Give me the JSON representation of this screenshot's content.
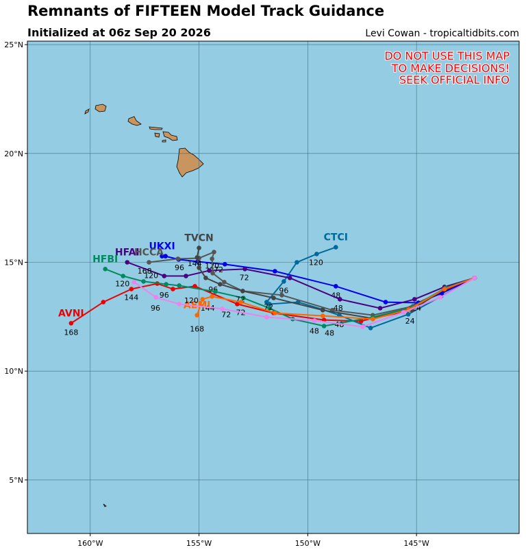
{
  "map": {
    "title": "Remnants of FIFTEEN Model Track Guidance",
    "subtitle": "Initialized at 06z Sep 20 2026",
    "credit": "Levi Cowan - tropicaltidbits.com",
    "warning": [
      "DO NOT USE THIS MAP",
      "TO MAKE DECISIONS!",
      "SEEK OFFICIAL INFO"
    ],
    "xlim": [
      -162.89,
      -140.28
    ],
    "ylim": [
      2.54,
      25.16
    ],
    "xticks": [
      {
        "value": -160,
        "label": "160°W"
      },
      {
        "value": -155,
        "label": "155°W"
      },
      {
        "value": -150,
        "label": "150°W"
      },
      {
        "value": -145,
        "label": "145°W"
      }
    ],
    "yticks": [
      {
        "value": 5,
        "label": "5°N"
      },
      {
        "value": 10,
        "label": "10°N"
      },
      {
        "value": 15,
        "label": "15°N"
      },
      {
        "value": 20,
        "label": "20°N"
      },
      {
        "value": 25,
        "label": "25°N"
      }
    ],
    "tracks": [
      {
        "name": "AVNI",
        "color": "#ee0000",
        "points": [
          [
            -142.33,
            14.28
          ],
          [
            -143.77,
            13.68
          ],
          [
            -145.66,
            12.8
          ],
          [
            -147.55,
            12.29
          ],
          [
            -149.25,
            12.35
          ],
          [
            -151.57,
            12.67
          ],
          [
            -153.24,
            13.08
          ],
          [
            -155.19,
            13.9
          ],
          [
            -156.2,
            13.77
          ],
          [
            -156.92,
            14.02
          ],
          [
            -158.11,
            13.77
          ],
          [
            -159.4,
            13.17
          ],
          [
            -160.88,
            12.2
          ]
        ],
        "hour_labels": [
          {
            "lon": -160.88,
            "lat": 11.79,
            "hour": 168
          },
          {
            "lon": -158.11,
            "lat": 13.39,
            "hour": 144
          },
          {
            "lon": -153.08,
            "lat": 12.7,
            "hour": 72
          }
        ]
      },
      {
        "name": "CTCI",
        "color": "#00699a",
        "points": [
          [
            -142.33,
            14.28
          ],
          [
            -143.87,
            13.43
          ],
          [
            -145.38,
            12.61
          ],
          [
            -147.11,
            11.98
          ],
          [
            -148.55,
            12.57
          ],
          [
            -149.31,
            12.83
          ],
          [
            -150.44,
            13.17
          ],
          [
            -151.76,
            13.08
          ],
          [
            -151.89,
            13.17
          ],
          [
            -151.1,
            14.12
          ],
          [
            -150.5,
            15.0
          ],
          [
            -149.59,
            15.38
          ],
          [
            -148.71,
            15.69
          ]
        ],
        "hour_labels": [
          {
            "lon": -149.62,
            "lat": 15.0,
            "hour": 120
          },
          {
            "lon": -148.55,
            "lat": 12.15,
            "hour": 48
          },
          {
            "lon": -145.3,
            "lat": 12.3,
            "hour": 24
          }
        ]
      },
      {
        "name": "UKXI",
        "color": "#0000ee",
        "points": [
          [
            -142.33,
            14.28
          ],
          [
            -143.84,
            13.58
          ],
          [
            -144.91,
            13.14
          ],
          [
            -146.42,
            13.17
          ],
          [
            -148.71,
            13.9
          ],
          [
            -151.51,
            14.59
          ],
          [
            -153.81,
            14.91
          ],
          [
            -155.06,
            15.03
          ],
          [
            -155.94,
            15.13
          ],
          [
            -156.54,
            15.28
          ],
          [
            -156.7,
            15.28
          ]
        ],
        "hour_labels": [
          {
            "lon": -148.71,
            "lat": 13.49,
            "hour": 48
          },
          {
            "lon": -154.4,
            "lat": 14.84,
            "hour": 120
          }
        ]
      },
      {
        "name": "HFAI",
        "color": "#4b0082",
        "points": [
          [
            -142.33,
            14.28
          ],
          [
            -143.71,
            13.87
          ],
          [
            -145.09,
            13.3
          ],
          [
            -146.67,
            12.89
          ],
          [
            -148.52,
            13.3
          ],
          [
            -150.82,
            14.28
          ],
          [
            -152.89,
            14.69
          ],
          [
            -154.53,
            14.62
          ],
          [
            -155.6,
            14.37
          ],
          [
            -156.6,
            14.37
          ],
          [
            -158.3,
            15.0
          ]
        ],
        "hour_labels": [
          {
            "lon": -152.92,
            "lat": 14.31,
            "hour": 72
          },
          {
            "lon": -151.1,
            "lat": 13.71,
            "hour": 96
          },
          {
            "lon": -158.52,
            "lat": 14.02,
            "hour": 120
          },
          {
            "lon": -145.0,
            "lat": 12.9,
            "hour": 24
          }
        ]
      },
      {
        "name": "HCCA",
        "color": "#555555",
        "points": [
          [
            -142.33,
            14.28
          ],
          [
            -143.71,
            13.77
          ],
          [
            -145.16,
            12.98
          ],
          [
            -147.01,
            12.57
          ],
          [
            -148.87,
            12.8
          ],
          [
            -151.19,
            13.49
          ],
          [
            -152.99,
            13.68
          ],
          [
            -153.84,
            14.09
          ],
          [
            -154.37,
            14.5
          ],
          [
            -154.4,
            15.16
          ],
          [
            -154.31,
            15.47
          ],
          [
            -155.0,
            15.19
          ],
          [
            -155.97,
            15.16
          ],
          [
            -157.3,
            15.0
          ]
        ],
        "hour_labels": [
          {
            "lon": -154.1,
            "lat": 14.67,
            "hour": 72
          },
          {
            "lon": -155.9,
            "lat": 14.77,
            "hour": 96
          },
          {
            "lon": -157.5,
            "lat": 14.6,
            "hour": 168
          }
        ]
      },
      {
        "name": "TVCN",
        "color": "#444444",
        "points": [
          [
            -142.33,
            14.28
          ],
          [
            -143.71,
            13.77
          ],
          [
            -145.22,
            12.8
          ],
          [
            -147.01,
            12.42
          ],
          [
            -149.31,
            12.8
          ],
          [
            -151.57,
            13.36
          ],
          [
            -152.99,
            13.68
          ],
          [
            -154.03,
            13.99
          ],
          [
            -154.69,
            14.28
          ],
          [
            -155.0,
            14.75
          ],
          [
            -155.09,
            15.22
          ],
          [
            -155.0,
            15.66
          ]
        ],
        "hour_labels": [
          {
            "lon": -148.6,
            "lat": 12.9,
            "hour": 48
          },
          {
            "lon": -154.35,
            "lat": 13.75,
            "hour": 96
          },
          {
            "lon": -155.2,
            "lat": 14.95,
            "hour": 144
          }
        ]
      },
      {
        "name": "HFBI",
        "color": "#008a60",
        "points": [
          [
            -142.33,
            14.28
          ],
          [
            -143.65,
            13.83
          ],
          [
            -145.22,
            12.92
          ],
          [
            -147.01,
            12.48
          ],
          [
            -149.25,
            12.07
          ],
          [
            -150.69,
            12.39
          ],
          [
            -151.76,
            12.89
          ],
          [
            -152.96,
            13.36
          ],
          [
            -154.25,
            13.65
          ],
          [
            -155.91,
            13.93
          ],
          [
            -156.51,
            13.99
          ],
          [
            -157.55,
            14.12
          ],
          [
            -158.49,
            14.37
          ],
          [
            -159.31,
            14.69
          ]
        ],
        "hour_labels": [
          {
            "lon": -149.0,
            "lat": 11.75,
            "hour": 48
          },
          {
            "lon": -153.1,
            "lat": 13.3,
            "hour": 72
          },
          {
            "lon": -156.6,
            "lat": 13.5,
            "hour": 96
          },
          {
            "lon": -157.2,
            "lat": 14.4,
            "hour": 120
          }
        ]
      },
      {
        "name": "AEMI",
        "color": "#ff6600",
        "points": [
          [
            -142.33,
            14.28
          ],
          [
            -143.71,
            13.77
          ],
          [
            -145.35,
            12.83
          ],
          [
            -147.01,
            12.39
          ],
          [
            -149.31,
            12.54
          ],
          [
            -151.51,
            12.67
          ],
          [
            -153.08,
            13.17
          ],
          [
            -154.4,
            13.43
          ],
          [
            -154.84,
            13.3
          ],
          [
            -155.09,
            12.57
          ]
        ],
        "hour_labels": [
          {
            "lon": -155.09,
            "lat": 11.95,
            "hour": 168
          },
          {
            "lon": -154.6,
            "lat": 12.9,
            "hour": 144
          },
          {
            "lon": -151.8,
            "lat": 12.95,
            "hour": 72
          },
          {
            "lon": -149.7,
            "lat": 11.85,
            "hour": 48
          }
        ]
      },
      {
        "color": "#ee82ee",
        "points": [
          [
            -142.33,
            14.28
          ],
          [
            -143.9,
            13.39
          ],
          [
            -145.6,
            12.7
          ],
          [
            -147.48,
            12.04
          ],
          [
            -149.69,
            12.32
          ],
          [
            -151.89,
            12.48
          ],
          [
            -153.93,
            12.86
          ],
          [
            -155.91,
            13.08
          ],
          [
            -156.98,
            13.39
          ],
          [
            -157.99,
            14.09
          ]
        ],
        "hour_labels": [
          {
            "lon": -153.75,
            "lat": 12.6,
            "hour": 72
          },
          {
            "lon": -155.35,
            "lat": 13.25,
            "hour": 120
          },
          {
            "lon": -157.0,
            "lat": 12.9,
            "hour": 96
          }
        ]
      }
    ]
  }
}
